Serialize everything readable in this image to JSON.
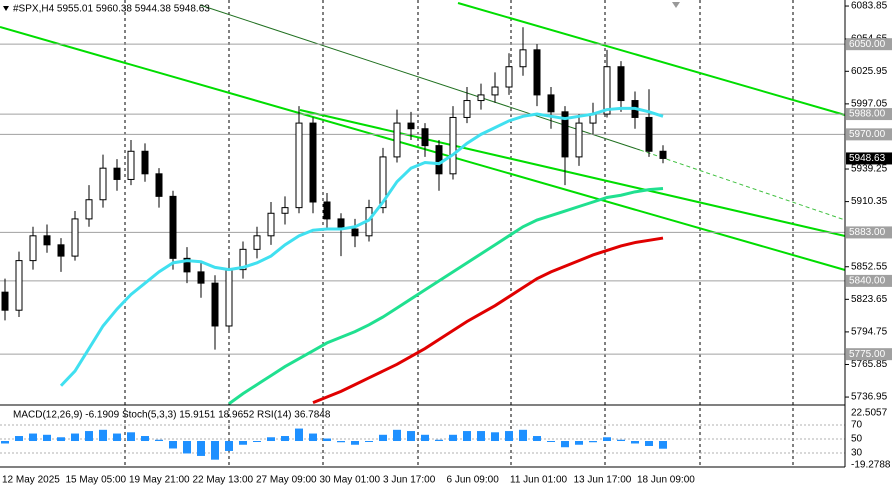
{
  "chart_data": {
    "type": "candlestick",
    "title": "#SPX,H4  5955.01 5960.38 5944.38 5948.63",
    "open": [
      5830,
      5814,
      5858,
      5880,
      5872,
      5862,
      5895,
      5912,
      5940,
      5930,
      5955,
      5935,
      5915,
      5860,
      5848,
      5838,
      5800,
      5850,
      5868,
      5880,
      5900,
      5905,
      5980,
      5910,
      5895,
      5886,
      5880,
      5905,
      5950,
      5980,
      5975,
      5960,
      5935,
      5985,
      6000,
      6005,
      6012,
      6030,
      6045,
      6005,
      5990,
      5950,
      5980,
      5988,
      6030,
      6000,
      5985,
      5955.01
    ],
    "high": [
      5842,
      5866,
      5888,
      5890,
      5878,
      5902,
      5925,
      5952,
      5948,
      5965,
      5962,
      5940,
      5920,
      5870,
      5858,
      5845,
      5858,
      5875,
      5888,
      5910,
      5915,
      5995,
      5985,
      5918,
      5900,
      5895,
      5912,
      5958,
      5992,
      5990,
      5980,
      5965,
      5995,
      6012,
      6015,
      6025,
      6042,
      6065,
      6050,
      6012,
      5995,
      5988,
      5998,
      6045,
      6035,
      6008,
      6010,
      5960.38
    ],
    "low": [
      5805,
      5808,
      5850,
      5865,
      5848,
      5858,
      5888,
      5905,
      5920,
      5925,
      5928,
      5905,
      5850,
      5838,
      5825,
      5779,
      5795,
      5842,
      5860,
      5872,
      5890,
      5900,
      5900,
      5885,
      5862,
      5870,
      5875,
      5900,
      5945,
      5965,
      5950,
      5920,
      5930,
      5980,
      5992,
      5998,
      6005,
      6022,
      5995,
      5975,
      5925,
      5942,
      5970,
      5985,
      5990,
      5975,
      5950,
      5944.38
    ],
    "close": [
      5814,
      5858,
      5880,
      5872,
      5862,
      5895,
      5912,
      5940,
      5930,
      5955,
      5935,
      5915,
      5860,
      5848,
      5838,
      5800,
      5850,
      5868,
      5880,
      5900,
      5905,
      5980,
      5910,
      5895,
      5886,
      5880,
      5905,
      5950,
      5980,
      5975,
      5960,
      5935,
      5985,
      6000,
      6005,
      6012,
      6030,
      6045,
      6005,
      5990,
      5950,
      5980,
      5988,
      6030,
      6000,
      5985,
      5955.01,
      5948.63
    ],
    "ylim": [
      5729.9,
      6089.2
    ],
    "yticks": [
      6083.85,
      6054.65,
      6025.95,
      5997.05,
      5939.25,
      5910.35,
      5852.55,
      5823.65,
      5794.75,
      5765.85,
      5736.95
    ],
    "levels": [
      {
        "value": 6050,
        "label": "6050.00"
      },
      {
        "value": 5988,
        "label": "5988.00"
      },
      {
        "value": 5970,
        "label": "5970.00"
      },
      {
        "value": 5883,
        "label": "5883.00"
      },
      {
        "value": 5840,
        "label": "5840.00"
      },
      {
        "value": 5775,
        "label": "5775.00"
      }
    ],
    "last_price": 5948.63,
    "ma": [
      {
        "color": "#40e0f0",
        "values": [
          null,
          null,
          null,
          null,
          5747,
          5760,
          5780,
          5800,
          5815,
          5828,
          5838,
          5848,
          5856,
          5858,
          5857,
          5852,
          5850,
          5852,
          5856,
          5862,
          5872,
          5880,
          5885,
          5886,
          5886,
          5888,
          5894,
          5910,
          5928,
          5940,
          5945,
          5944,
          5952,
          5962,
          5970,
          5976,
          5982,
          5986,
          5988,
          5986,
          5984,
          5986,
          5988,
          5992,
          5993,
          5993,
          5990,
          5986
        ]
      },
      {
        "color": "#20e090",
        "values": [
          null,
          null,
          null,
          null,
          null,
          null,
          null,
          null,
          null,
          null,
          null,
          null,
          null,
          null,
          null,
          null,
          5731,
          5740,
          5748,
          5756,
          5764,
          5771,
          5778,
          5785,
          5790,
          5795,
          5801,
          5808,
          5816,
          5824,
          5832,
          5840,
          5848,
          5856,
          5864,
          5872,
          5880,
          5888,
          5894,
          5898,
          5902,
          5906,
          5910,
          5914,
          5916,
          5919,
          5921,
          5922
        ]
      },
      {
        "color": "#e00000",
        "values": [
          null,
          null,
          null,
          null,
          null,
          null,
          null,
          null,
          null,
          null,
          null,
          null,
          null,
          null,
          null,
          null,
          null,
          null,
          null,
          null,
          null,
          null,
          5732,
          5737,
          5742,
          5748,
          5754,
          5760,
          5766,
          5773,
          5780,
          5788,
          5796,
          5804,
          5811,
          5818,
          5826,
          5834,
          5842,
          5848,
          5853,
          5858,
          5863,
          5867,
          5871,
          5874,
          5876,
          5878
        ]
      }
    ],
    "x_labels": [
      "12 May 2025",
      "15 May 05:00",
      "19 May 21:00",
      "22 May 13:00",
      "27 May 09:00",
      "30 May 01:00",
      "3 Jun 17:00",
      "6 Jun 09:00",
      "11 Jun 01:00",
      "13 Jun 17:00",
      "18 Jun 09:00"
    ],
    "indicator": {
      "title": "MACD(12,26,9) -6.1909  Stoch(5,3,3) 15.9151 18.9652  RSI(14) 36.7848",
      "values": [
        -2,
        4,
        6,
        5,
        3,
        6,
        8,
        9,
        6,
        7,
        4,
        1,
        -6,
        -10,
        -12,
        -15,
        -8,
        -3,
        0,
        3,
        4,
        10,
        6,
        2,
        -1,
        -3,
        0,
        5,
        9,
        8,
        5,
        1,
        5,
        8,
        8,
        7,
        8,
        9,
        4,
        0,
        -5,
        -3,
        -1,
        3,
        1,
        -2,
        -4,
        -6.1909
      ],
      "color": "#1e90ff",
      "ylim": [
        -19.2788,
        22.5057
      ],
      "yticks": [
        22.5057,
        -19.2788
      ],
      "levels": [
        70,
        50,
        30
      ],
      "level_lim": [
        0,
        100
      ]
    }
  }
}
